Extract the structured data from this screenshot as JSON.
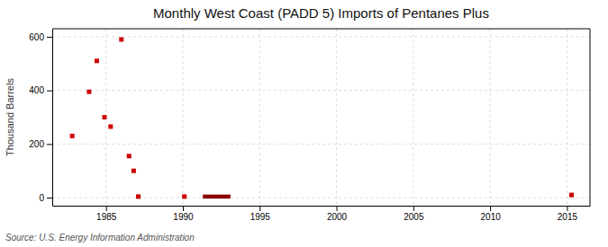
{
  "chart_data": {
    "type": "scatter",
    "title": "Monthly West Coast (PADD 5) Imports of Pentanes Plus",
    "ylabel": "Thousand Barrels",
    "source": "Source: U.S. Energy Information Administration",
    "xlim": [
      1981.5,
      2016.5
    ],
    "xticks": [
      1985,
      1990,
      1995,
      2000,
      2005,
      2010,
      2015
    ],
    "ylim": [
      -30,
      630
    ],
    "yticks": [
      0,
      200,
      400,
      600
    ],
    "grid": true,
    "series": [
      {
        "type": "scatter",
        "color": "#cc0000",
        "marker": "square",
        "x": [
          1982.8,
          1983.9,
          1984.4,
          1984.9,
          1985.3,
          1986.0,
          1986.5,
          1986.8,
          1987.1,
          1990.1
        ],
        "values": [
          230,
          395,
          510,
          300,
          265,
          590,
          155,
          100,
          4,
          4
        ]
      },
      {
        "type": "line",
        "color": "#8b0000",
        "line_style": "solid",
        "x": [
          1991.3,
          1993.1
        ],
        "values": [
          4,
          4
        ]
      },
      {
        "type": "scatter",
        "color": "#cc0000",
        "marker": "square",
        "x": [
          2015.3
        ],
        "values": [
          10
        ]
      }
    ]
  }
}
